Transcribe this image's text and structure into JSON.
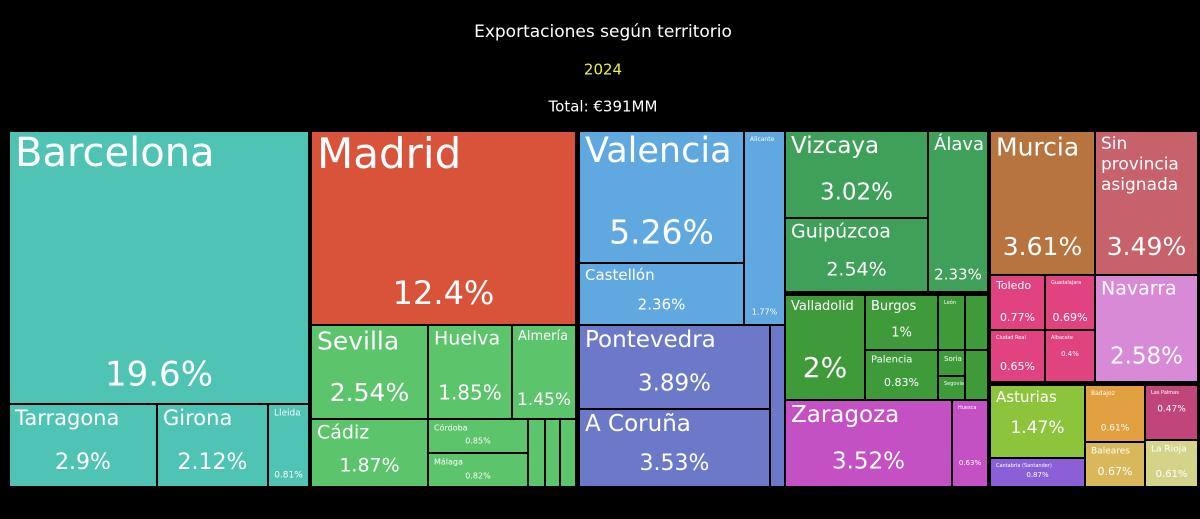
{
  "chart_data": {
    "type": "treemap",
    "title": "Exportaciones según territorio",
    "subtitle": "2024",
    "annotation": "Total: €391MM",
    "categories": [
      "Barcelona",
      "Tarragona",
      "Girona",
      "Lleida",
      "Madrid",
      "Sevilla",
      "Cádiz",
      "Huelva",
      "Almería",
      "Córdoba",
      "Málaga",
      "Valencia",
      "Castellón",
      "Alicante",
      "Pontevedra",
      "A Coruña",
      "Vizcaya",
      "Guipúzcoa",
      "Álava",
      "Valladolid",
      "Burgos",
      "Palencia",
      "León",
      "Soria",
      "Segovia",
      "Zaragoza",
      "Huesca",
      "Murcia",
      "Sin provincia asignada",
      "Navarra",
      "Toledo",
      "Guadalajara",
      "Ciudad Real",
      "Albacete",
      "Asturias",
      "Cantabria (Santander)",
      "Badajoz",
      "Baleares",
      "Las Palmas",
      "La Rioja"
    ],
    "values": [
      19.6,
      2.9,
      2.12,
      0.81,
      12.4,
      2.54,
      1.87,
      1.85,
      1.45,
      0.85,
      0.82,
      5.26,
      2.36,
      1.77,
      3.89,
      3.53,
      3.02,
      2.54,
      2.33,
      2,
      1,
      0.83,
      null,
      null,
      null,
      3.52,
      0.63,
      3.61,
      3.49,
      2.58,
      0.77,
      0.69,
      0.65,
      0.4,
      1.47,
      0.87,
      0.61,
      0.67,
      0.47,
      0.61
    ],
    "value_labels": [
      "19.6%",
      "2.9%",
      "2.12%",
      "0.81%",
      "12.4%",
      "2.54%",
      "1.87%",
      "1.85%",
      "1.45%",
      "0.85%",
      "0.82%",
      "5.26%",
      "2.36%",
      "1.77%",
      "3.89%",
      "3.53%",
      "3.02%",
      "2.54%",
      "2.33%",
      "2%",
      "1%",
      "0.83%",
      null,
      null,
      null,
      "3.52%",
      "0.63%",
      "3.61%",
      "3.49%",
      "2.58%",
      "0.77%",
      "0.69%",
      "0.65%",
      "0.4%",
      "1.47%",
      "0.87%",
      "0.61%",
      "0.67%",
      "0.47%",
      "0.61%"
    ],
    "colors": [
      "#4fc4b4",
      "#4fc4b4",
      "#4fc4b4",
      "#4fc4b4",
      "#d9533b",
      "#5cc46a",
      "#5cc46a",
      "#5cc46a",
      "#5cc46a",
      "#5cc46a",
      "#5cc46a",
      "#5fa8e0",
      "#5fa8e0",
      "#5fa8e0",
      "#6c79c9",
      "#6c79c9",
      "#3fa05a",
      "#3fa05a",
      "#3fa05a",
      "#3f9a3a",
      "#3f9a3a",
      "#3f9a3a",
      "#3f9a3a",
      "#3f9a3a",
      "#3f9a3a",
      "#c451c4",
      "#c451c4",
      "#b8743e",
      "#c7616a",
      "#d98ad6",
      "#e0437f",
      "#e0437f",
      "#e0437f",
      "#e0437f",
      "#8cc43c",
      "#8b5fd6",
      "#e0a03f",
      "#d8b85a",
      "#c0457a",
      "#d3d48a"
    ]
  }
}
